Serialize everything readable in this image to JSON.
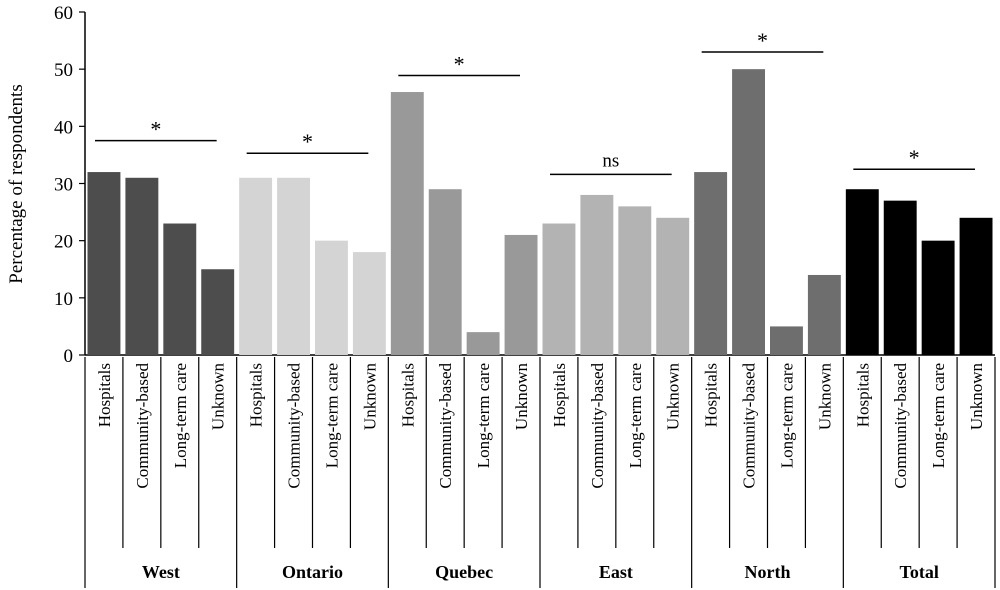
{
  "chart_data": {
    "type": "bar",
    "title": "",
    "xlabel": "",
    "ylabel": "Percentage of respondents",
    "ylim": [
      0,
      60
    ],
    "yticks": [
      "0",
      "10",
      "20",
      "30",
      "40",
      "50",
      "60"
    ],
    "grid": false,
    "subcategories": [
      "Hospitals",
      "Community-based",
      "Long-term care",
      "Unknown"
    ],
    "groups": [
      {
        "name": "West",
        "color": "#4d4d4d",
        "values": [
          32,
          31,
          23,
          15
        ],
        "significance": {
          "label": "*",
          "level": 37.5
        }
      },
      {
        "name": "Ontario",
        "color": "#d4d4d4",
        "values": [
          31,
          31,
          20,
          18
        ],
        "significance": {
          "label": "*",
          "level": 35.3
        }
      },
      {
        "name": "Quebec",
        "color": "#999999",
        "values": [
          46,
          29,
          4,
          21
        ],
        "significance": {
          "label": "*",
          "level": 48.9
        }
      },
      {
        "name": "East",
        "color": "#b3b3b3",
        "values": [
          23,
          28,
          26,
          24
        ],
        "significance": {
          "label": "ns",
          "level": 31.6
        }
      },
      {
        "name": "North",
        "color": "#6e6e6e",
        "values": [
          32,
          50,
          5,
          14
        ],
        "significance": {
          "label": "*",
          "level": 53
        }
      },
      {
        "name": "Total",
        "color": "#000000",
        "values": [
          29,
          27,
          20,
          24
        ],
        "significance": {
          "label": "*",
          "level": 32.5
        }
      }
    ]
  }
}
